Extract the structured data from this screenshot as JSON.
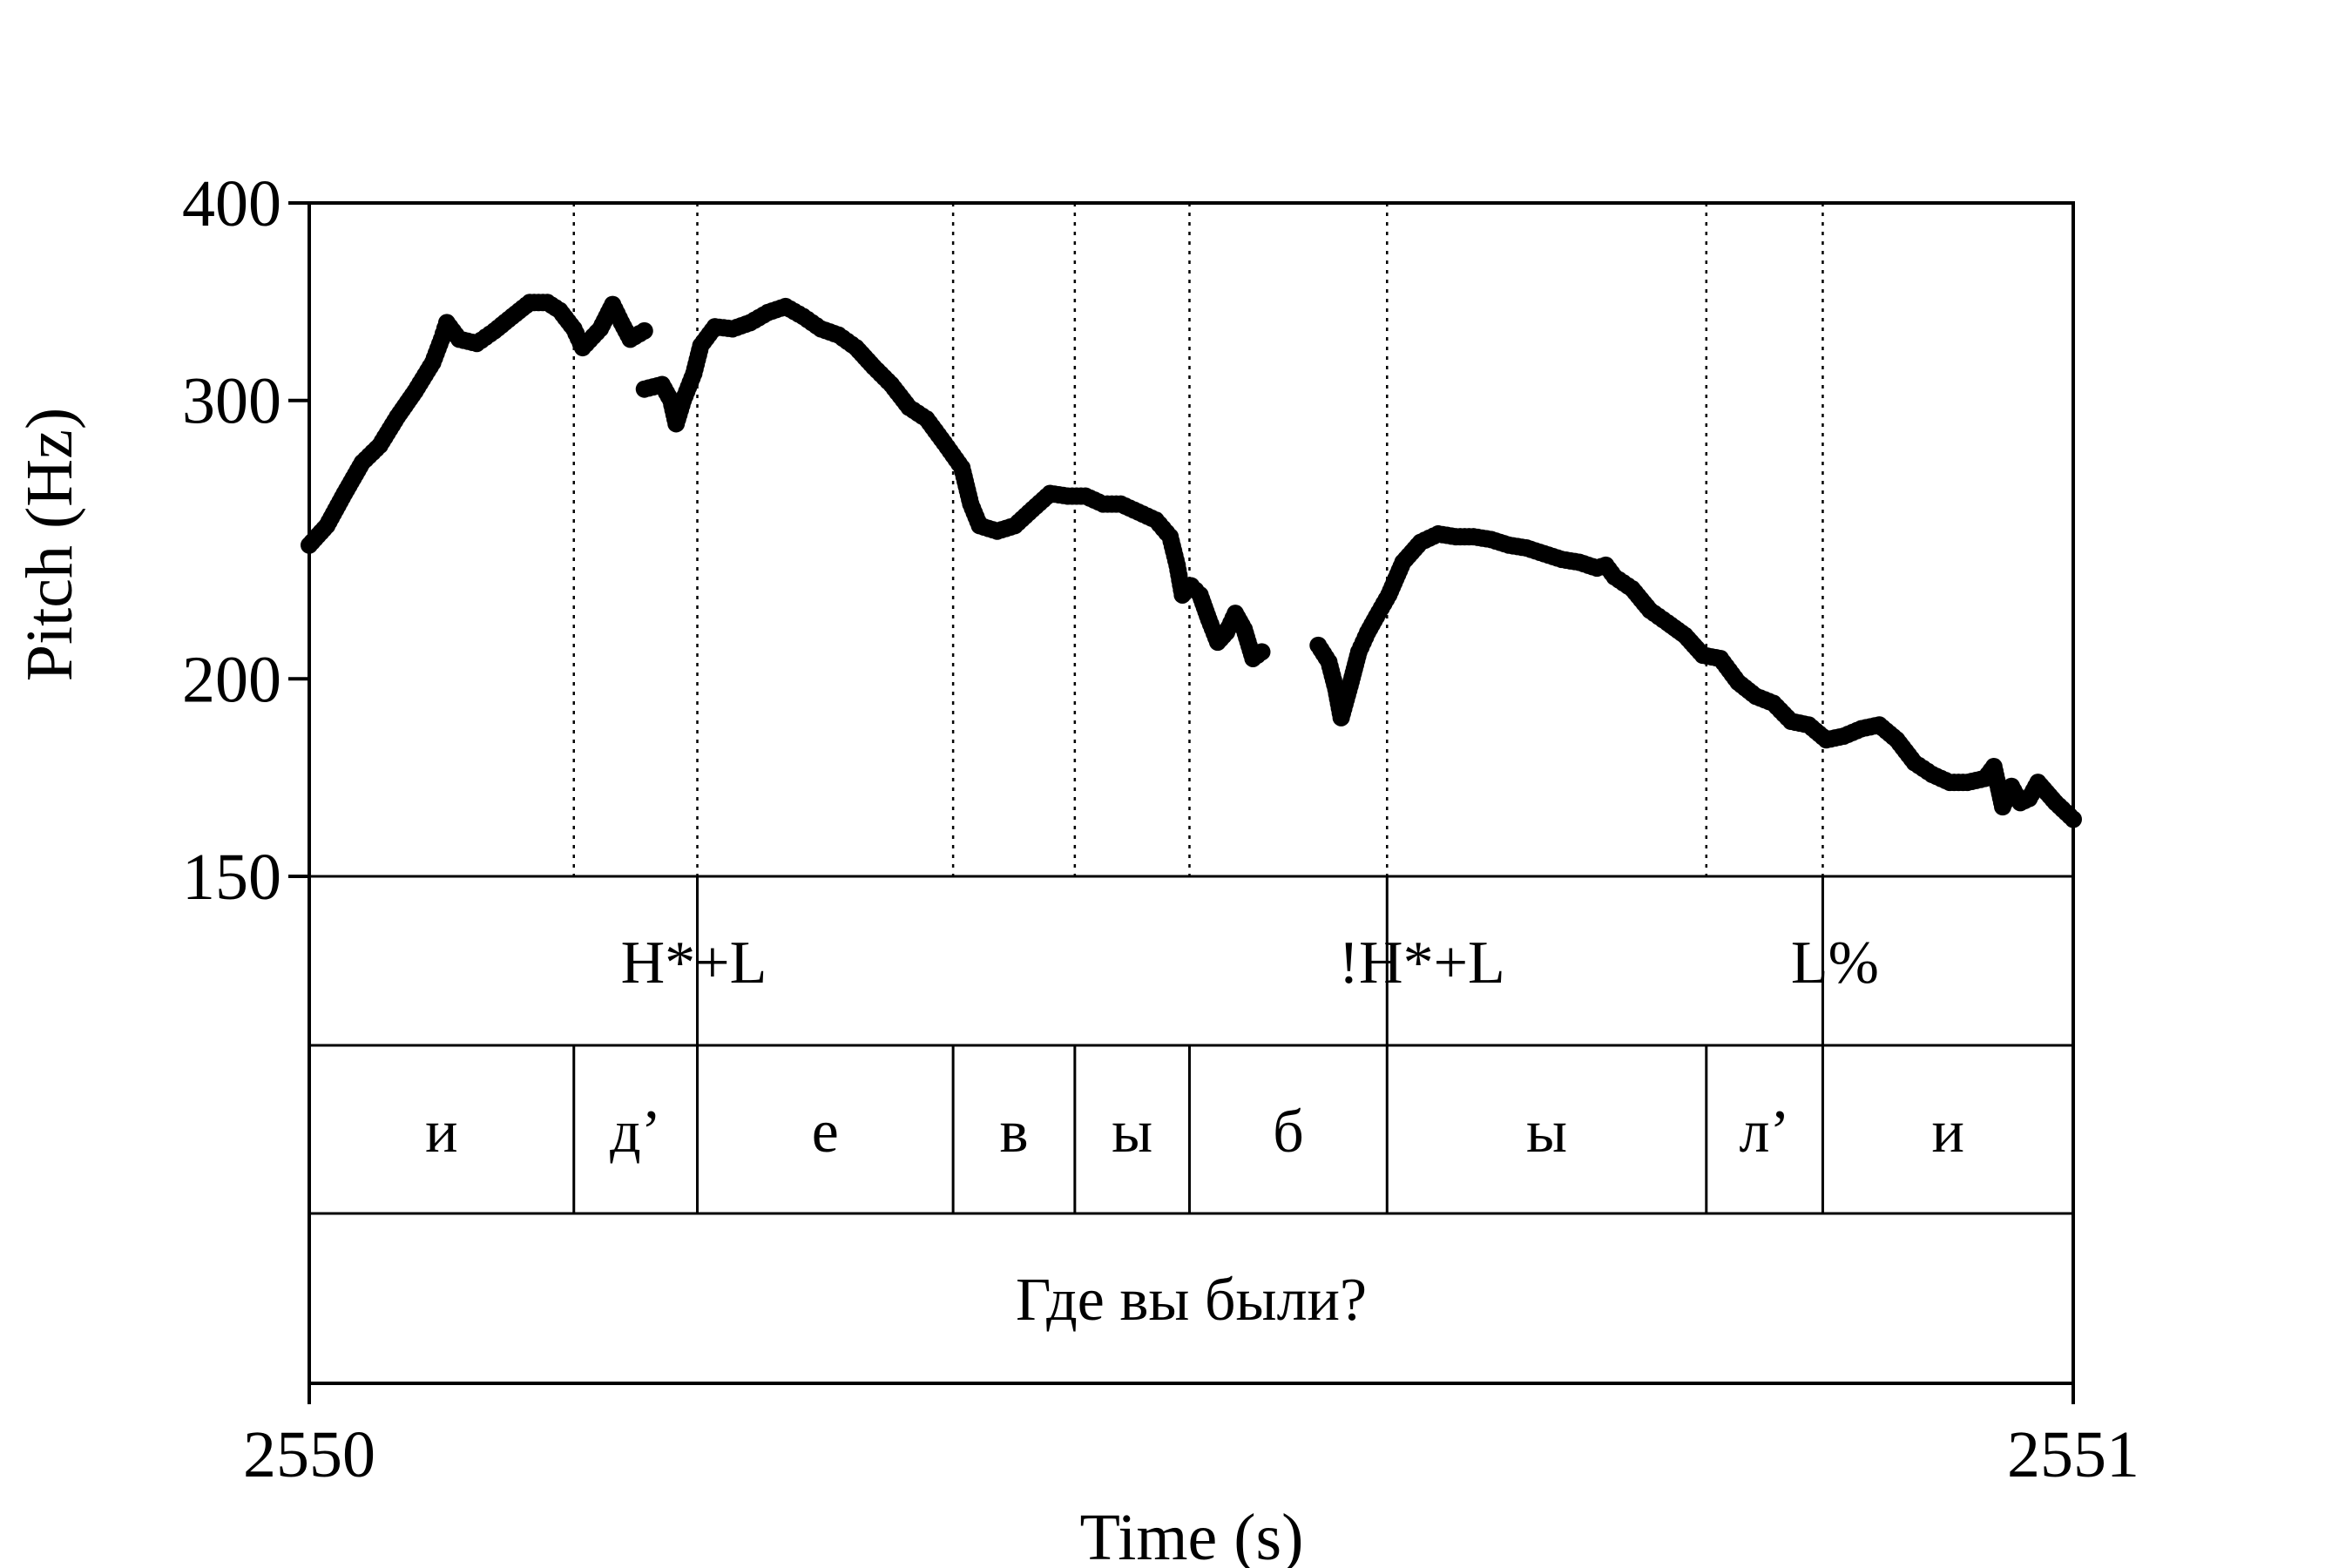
{
  "chart_data": {
    "type": "scatter",
    "xlabel": "Time (s)",
    "ylabel": "Pitch (Hz)",
    "xlim": [
      2550,
      2551
    ],
    "ylim": [
      150,
      400
    ],
    "y_scale": "log",
    "x_ticks": [
      "2550",
      "2551"
    ],
    "y_ticks": [
      {
        "value": 150,
        "label": "150"
      },
      {
        "value": 200,
        "label": "200"
      },
      {
        "value": 300,
        "label": "300"
      },
      {
        "value": 400,
        "label": "400"
      }
    ],
    "grid": false,
    "point_color": "#000000",
    "boundaries": [
      2550.15,
      2550.22,
      2550.365,
      2550.434,
      2550.499,
      2550.611,
      2550.792,
      2550.858
    ],
    "tiers": {
      "tones": [
        {
          "time": 2550.22,
          "label": "H*+L"
        },
        {
          "time": 2550.611,
          "label": "!H*+L"
        },
        {
          "time": 2550.858,
          "label": "L%"
        }
      ],
      "segments": [
        {
          "start": 2550.0,
          "end": 2550.15,
          "label": "и"
        },
        {
          "start": 2550.15,
          "end": 2550.22,
          "label": "д’"
        },
        {
          "start": 2550.22,
          "end": 2550.365,
          "label": "е"
        },
        {
          "start": 2550.365,
          "end": 2550.434,
          "label": "в"
        },
        {
          "start": 2550.434,
          "end": 2550.499,
          "label": "ы"
        },
        {
          "start": 2550.499,
          "end": 2550.611,
          "label": "б"
        },
        {
          "start": 2550.611,
          "end": 2550.792,
          "label": "ы"
        },
        {
          "start": 2550.792,
          "end": 2550.858,
          "label": "л’"
        },
        {
          "start": 2550.858,
          "end": 2551.0,
          "label": "и"
        }
      ],
      "sentence": "Где вы были?"
    },
    "series": [
      {
        "segments": [
          [
            [
              2550.0,
              243
            ],
            [
              2550.01,
              250
            ],
            [
              2550.02,
              262
            ],
            [
              2550.03,
              274
            ],
            [
              2550.04,
              281
            ],
            [
              2550.05,
              293
            ],
            [
              2550.06,
              304
            ],
            [
              2550.07,
              317
            ],
            [
              2550.075,
              328
            ],
            [
              2550.078,
              336
            ],
            [
              2550.085,
              328
            ],
            [
              2550.095,
              326
            ],
            [
              2550.105,
              332
            ],
            [
              2550.115,
              339
            ],
            [
              2550.125,
              346
            ],
            [
              2550.135,
              346
            ],
            [
              2550.142,
              342
            ],
            [
              2550.15,
              333
            ],
            [
              2550.155,
              324
            ],
            [
              2550.165,
              333
            ],
            [
              2550.172,
              345
            ],
            [
              2550.177,
              336
            ],
            [
              2550.182,
              328
            ],
            [
              2550.19,
              332
            ]
          ],
          [
            [
              2550.19,
              305
            ],
            [
              2550.2,
              307
            ],
            [
              2550.205,
              300
            ],
            [
              2550.208,
              290
            ],
            [
              2550.212,
              300
            ],
            [
              2550.218,
              312
            ],
            [
              2550.222,
              325
            ],
            [
              2550.23,
              334
            ],
            [
              2550.24,
              333
            ],
            [
              2550.25,
              336
            ],
            [
              2550.26,
              341
            ],
            [
              2550.27,
              344
            ],
            [
              2550.28,
              339
            ],
            [
              2550.29,
              333
            ],
            [
              2550.3,
              330
            ],
            [
              2550.31,
              324
            ],
            [
              2550.32,
              315
            ],
            [
              2550.33,
              307
            ],
            [
              2550.34,
              297
            ],
            [
              2550.35,
              292
            ],
            [
              2550.36,
              282
            ],
            [
              2550.37,
              272
            ],
            [
              2550.375,
              258
            ],
            [
              2550.38,
              250
            ],
            [
              2550.39,
              248
            ],
            [
              2550.4,
              250
            ],
            [
              2550.41,
              256
            ],
            [
              2550.42,
              262
            ],
            [
              2550.43,
              261
            ],
            [
              2550.44,
              261
            ],
            [
              2550.45,
              258
            ],
            [
              2550.46,
              258
            ],
            [
              2550.47,
              255
            ],
            [
              2550.48,
              252
            ],
            [
              2550.488,
              246
            ],
            [
              2550.492,
              236
            ],
            [
              2550.495,
              226
            ],
            [
              2550.5,
              229
            ],
            [
              2550.505,
              226
            ],
            [
              2550.51,
              218
            ],
            [
              2550.515,
              211
            ],
            [
              2550.52,
              214
            ],
            [
              2550.525,
              220
            ],
            [
              2550.53,
              215
            ],
            [
              2550.535,
              206
            ],
            [
              2550.54,
              208
            ]
          ],
          [
            [
              2550.572,
              210
            ],
            [
              2550.578,
              205
            ],
            [
              2550.582,
              197
            ],
            [
              2550.585,
              189
            ],
            [
              2550.59,
              198
            ],
            [
              2550.595,
              208
            ],
            [
              2550.6,
              214
            ],
            [
              2550.605,
              219
            ],
            [
              2550.612,
              226
            ],
            [
              2550.62,
              237
            ],
            [
              2550.63,
              244
            ],
            [
              2550.64,
              247
            ],
            [
              2550.65,
              246
            ],
            [
              2550.66,
              246
            ],
            [
              2550.67,
              245
            ],
            [
              2550.68,
              243
            ],
            [
              2550.69,
              242
            ],
            [
              2550.7,
              240
            ],
            [
              2550.71,
              238
            ],
            [
              2550.72,
              237
            ],
            [
              2550.73,
              235
            ],
            [
              2550.735,
              236
            ],
            [
              2550.74,
              232
            ],
            [
              2550.75,
              228
            ],
            [
              2550.76,
              221
            ],
            [
              2550.77,
              217
            ],
            [
              2550.78,
              213
            ],
            [
              2550.79,
              207
            ],
            [
              2550.8,
              206
            ],
            [
              2550.81,
              199
            ],
            [
              2550.82,
              195
            ],
            [
              2550.83,
              193
            ],
            [
              2550.84,
              188
            ],
            [
              2550.85,
              187
            ],
            [
              2550.86,
              183
            ],
            [
              2550.87,
              184
            ],
            [
              2550.88,
              186
            ],
            [
              2550.89,
              187
            ],
            [
              2550.9,
              183
            ],
            [
              2550.91,
              177
            ],
            [
              2550.92,
              174
            ],
            [
              2550.93,
              172
            ],
            [
              2550.94,
              172
            ],
            [
              2550.95,
              173
            ],
            [
              2550.955,
              176
            ],
            [
              2550.96,
              166
            ],
            [
              2550.965,
              171
            ],
            [
              2550.97,
              167
            ],
            [
              2550.975,
              168
            ],
            [
              2550.98,
              172
            ],
            [
              2550.99,
              167
            ],
            [
              2551.0,
              163
            ]
          ]
        ]
      }
    ]
  }
}
